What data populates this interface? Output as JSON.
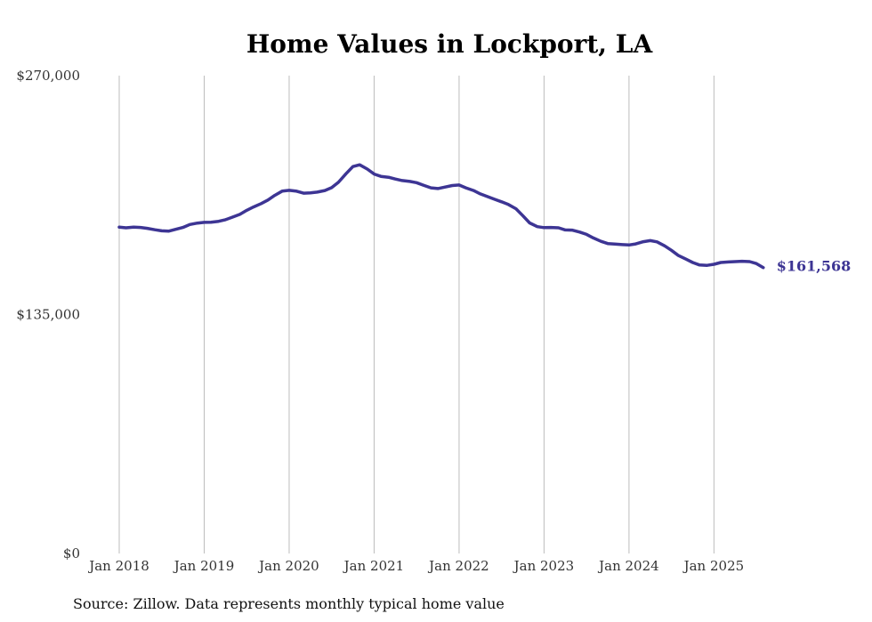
{
  "chart_data": {
    "type": "line",
    "title": "Home Values in Lockport, LA",
    "source": "Source: Zillow. Data represents monthly typical home value",
    "end_label": "$161,568",
    "line_color": "#3d3594",
    "ylim": [
      0,
      270000
    ],
    "yticks": [
      {
        "value": 0,
        "label": "$0"
      },
      {
        "value": 135000,
        "label": "$135,000"
      },
      {
        "value": 270000,
        "label": "$270,000"
      }
    ],
    "xlim": [
      2018.0,
      2025.75
    ],
    "xticks": [
      {
        "value": 2018,
        "label": "Jan 2018"
      },
      {
        "value": 2019,
        "label": "Jan 2019"
      },
      {
        "value": 2020,
        "label": "Jan 2020"
      },
      {
        "value": 2021,
        "label": "Jan 2021"
      },
      {
        "value": 2022,
        "label": "Jan 2022"
      },
      {
        "value": 2023,
        "label": "Jan 2023"
      },
      {
        "value": 2024,
        "label": "Jan 2024"
      },
      {
        "value": 2025,
        "label": "Jan 2025"
      }
    ],
    "grid": "vertical",
    "series": [
      {
        "values": [
          [
            2018.0,
            184400
          ],
          [
            2018.08,
            184000
          ],
          [
            2018.17,
            184400
          ],
          [
            2018.25,
            184200
          ],
          [
            2018.33,
            183700
          ],
          [
            2018.42,
            182900
          ],
          [
            2018.5,
            182300
          ],
          [
            2018.58,
            182100
          ],
          [
            2018.67,
            183200
          ],
          [
            2018.75,
            184200
          ],
          [
            2018.83,
            185900
          ],
          [
            2018.92,
            186700
          ],
          [
            2019.0,
            187100
          ],
          [
            2019.08,
            187200
          ],
          [
            2019.17,
            187700
          ],
          [
            2019.25,
            188600
          ],
          [
            2019.33,
            190000
          ],
          [
            2019.42,
            191600
          ],
          [
            2019.5,
            193900
          ],
          [
            2019.58,
            195800
          ],
          [
            2019.67,
            197700
          ],
          [
            2019.75,
            199700
          ],
          [
            2019.83,
            202300
          ],
          [
            2019.92,
            204800
          ],
          [
            2020.0,
            205200
          ],
          [
            2020.08,
            204800
          ],
          [
            2020.17,
            203600
          ],
          [
            2020.25,
            203800
          ],
          [
            2020.33,
            204200
          ],
          [
            2020.42,
            205100
          ],
          [
            2020.5,
            206700
          ],
          [
            2020.58,
            209700
          ],
          [
            2020.67,
            214600
          ],
          [
            2020.75,
            218600
          ],
          [
            2020.83,
            219600
          ],
          [
            2020.92,
            217200
          ],
          [
            2021.0,
            214400
          ],
          [
            2021.08,
            213100
          ],
          [
            2021.17,
            212600
          ],
          [
            2021.25,
            211600
          ],
          [
            2021.33,
            210700
          ],
          [
            2021.42,
            210200
          ],
          [
            2021.5,
            209500
          ],
          [
            2021.58,
            208100
          ],
          [
            2021.67,
            206600
          ],
          [
            2021.75,
            206200
          ],
          [
            2021.83,
            207000
          ],
          [
            2021.92,
            207900
          ],
          [
            2022.0,
            208200
          ],
          [
            2022.08,
            206600
          ],
          [
            2022.17,
            205100
          ],
          [
            2022.25,
            203200
          ],
          [
            2022.33,
            201700
          ],
          [
            2022.42,
            200100
          ],
          [
            2022.5,
            198700
          ],
          [
            2022.58,
            197200
          ],
          [
            2022.67,
            194800
          ],
          [
            2022.75,
            190900
          ],
          [
            2022.83,
            186800
          ],
          [
            2022.92,
            184700
          ],
          [
            2023.0,
            184100
          ],
          [
            2023.08,
            184200
          ],
          [
            2023.17,
            184000
          ],
          [
            2023.25,
            182800
          ],
          [
            2023.33,
            182700
          ],
          [
            2023.42,
            181600
          ],
          [
            2023.5,
            180300
          ],
          [
            2023.58,
            178300
          ],
          [
            2023.67,
            176400
          ],
          [
            2023.75,
            175100
          ],
          [
            2023.83,
            174800
          ],
          [
            2023.92,
            174500
          ],
          [
            2024.0,
            174300
          ],
          [
            2024.08,
            174900
          ],
          [
            2024.17,
            176200
          ],
          [
            2024.25,
            176800
          ],
          [
            2024.33,
            176100
          ],
          [
            2024.42,
            173800
          ],
          [
            2024.5,
            171300
          ],
          [
            2024.58,
            168400
          ],
          [
            2024.67,
            166300
          ],
          [
            2024.75,
            164400
          ],
          [
            2024.83,
            163000
          ],
          [
            2024.92,
            162800
          ],
          [
            2025.0,
            163400
          ],
          [
            2025.08,
            164400
          ],
          [
            2025.17,
            164700
          ],
          [
            2025.25,
            164900
          ],
          [
            2025.33,
            165100
          ],
          [
            2025.42,
            164900
          ],
          [
            2025.5,
            163800
          ],
          [
            2025.58,
            161568
          ]
        ]
      }
    ]
  }
}
